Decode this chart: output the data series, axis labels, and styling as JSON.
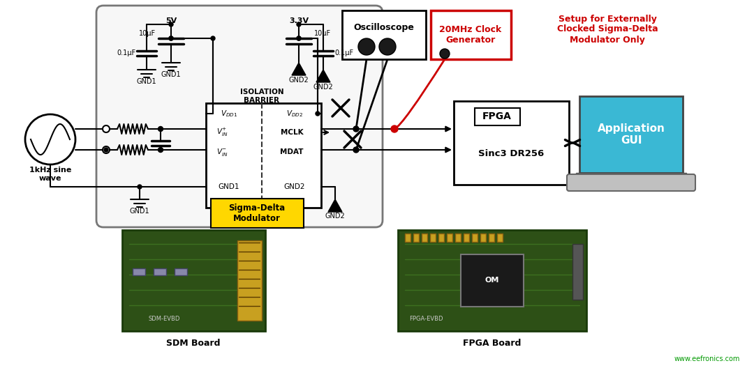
{
  "bg_color": "#ffffff",
  "figsize": [
    10.8,
    5.28
  ],
  "dpi": 100,
  "oscilloscope_label": "Oscilloscope",
  "clock_gen_label": "20MHz Clock\nGenerator",
  "setup_note": "Setup for Externally\nClocked Sigma-Delta\nModulator Only",
  "fpga_label": "FPGA",
  "fpga_sub": "Sinc3 DR256",
  "app_gui_label": "Application\nGUI",
  "sigma_delta_label": "Sigma-Delta\nModulator",
  "source_label": "1kHz sine\nwave",
  "sdm_board_label": "SDM Board",
  "fpga_board_label": "FPGA Board",
  "watermark": "www.eefronics.com",
  "isolation_barrier": "ISOLATION\nBARRIER",
  "mclk": "MCLK",
  "mdat": "MDAT",
  "gnd1": "GND1",
  "gnd2": "GND2",
  "v5": "5V",
  "v33": "3.3V",
  "cap_10uf": "10μF",
  "cap_01uf": "0.1μF",
  "vdd1_label": "Vₚ₁",
  "vdd2_label": "Vₚ₂",
  "vin_plus": "Vᴵₙ⁺",
  "vin_minus": "Vᴵₙ⁻",
  "black": "#000000",
  "red": "#cc0000",
  "yellow": "#FFD700",
  "green_pcb": "#2d5016",
  "blue_screen": "#3ab8d4",
  "gray_board": "#f0f0f0",
  "board_outline": "#666666"
}
